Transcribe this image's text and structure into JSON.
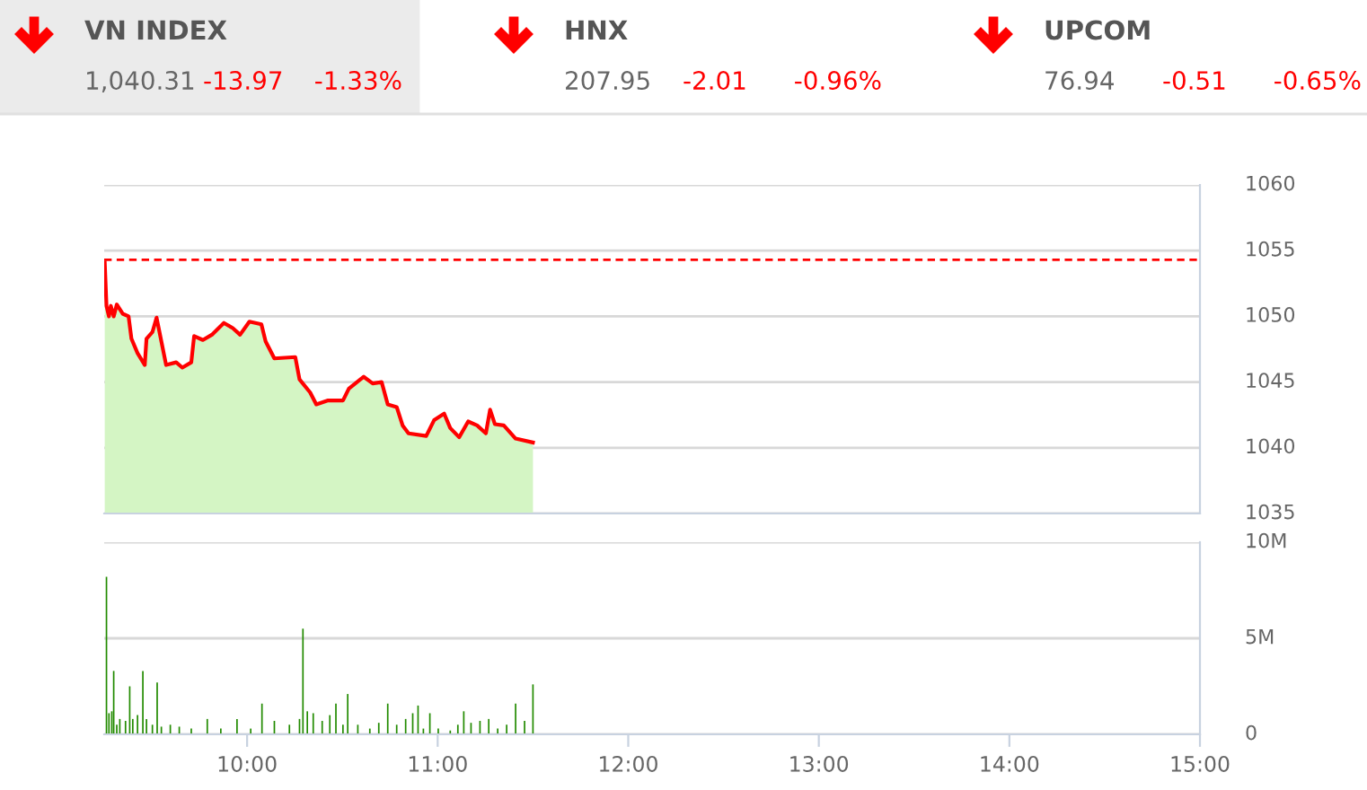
{
  "chart_data": [
    {
      "type": "other",
      "annotations": [
        "VN INDEX",
        "1,040.31",
        "-13.97",
        "-1.33%",
        "HNX",
        "207.95",
        "-2.01",
        "-0.96%",
        "UPCOM",
        "76.94",
        "-0.51",
        "-0.65%"
      ]
    },
    {
      "type": "area",
      "xlim": [
        9.25,
        15
      ],
      "ylim": [
        1035,
        1060
      ],
      "yticks": [
        1035,
        1040,
        1045,
        1050,
        1055,
        1060
      ],
      "tick_labels": "y",
      "grid": "y",
      "ref_lines": [
        {
          "axis": "y",
          "value": 1054.3,
          "color": "#ff0000",
          "line_style": "dashed"
        }
      ],
      "series": [
        {
          "type": "area",
          "color": "#d4f5c4",
          "x": [
            9.253,
            9.262,
            9.275,
            9.285,
            9.3,
            9.316,
            9.347,
            9.378,
            9.393,
            9.425,
            9.463,
            9.472,
            9.503,
            9.525,
            9.55,
            9.575,
            9.628,
            9.66,
            9.707,
            9.722,
            9.768,
            9.815,
            9.878,
            9.925,
            9.963,
            10.012,
            10.075,
            10.097,
            10.143,
            10.253,
            10.275,
            10.331,
            10.363,
            10.425,
            10.503,
            10.534,
            10.612,
            10.659,
            10.706,
            10.738,
            10.785,
            10.816,
            10.847,
            10.94,
            10.981,
            11.034,
            11.066,
            11.113,
            11.16,
            11.207,
            11.253,
            11.275,
            11.3,
            11.347,
            11.409,
            11.5
          ],
          "values": [
            1054.1,
            1050.8,
            1050.0,
            1050.8,
            1050.0,
            1050.9,
            1050.2,
            1050.0,
            1048.3,
            1047.2,
            1046.3,
            1048.3,
            1048.8,
            1049.9,
            1048.1,
            1046.3,
            1046.5,
            1046.1,
            1046.5,
            1048.5,
            1048.2,
            1048.6,
            1049.5,
            1049.1,
            1048.6,
            1049.6,
            1049.4,
            1048.1,
            1046.8,
            1046.9,
            1045.2,
            1044.2,
            1043.3,
            1043.6,
            1043.6,
            1044.5,
            1045.4,
            1044.9,
            1045.0,
            1043.3,
            1043.1,
            1041.7,
            1041.1,
            1040.9,
            1042.1,
            1042.6,
            1041.5,
            1040.8,
            1042.0,
            1041.7,
            1041.1,
            1042.9,
            1041.8,
            1041.7,
            1040.7,
            1040.4
          ]
        },
        {
          "type": "line",
          "color": "#ff0000",
          "x": [
            9.253,
            9.262,
            9.275,
            9.285,
            9.3,
            9.316,
            9.347,
            9.378,
            9.393,
            9.425,
            9.463,
            9.472,
            9.503,
            9.525,
            9.55,
            9.575,
            9.628,
            9.66,
            9.707,
            9.722,
            9.768,
            9.815,
            9.878,
            9.925,
            9.963,
            10.012,
            10.075,
            10.097,
            10.143,
            10.253,
            10.275,
            10.331,
            10.363,
            10.425,
            10.503,
            10.534,
            10.612,
            10.659,
            10.706,
            10.738,
            10.785,
            10.816,
            10.847,
            10.94,
            10.981,
            11.034,
            11.066,
            11.113,
            11.16,
            11.207,
            11.253,
            11.275,
            11.3,
            11.347,
            11.409,
            11.5
          ],
          "values": [
            1054.1,
            1050.8,
            1050.0,
            1050.8,
            1050.0,
            1050.9,
            1050.2,
            1050.0,
            1048.3,
            1047.2,
            1046.3,
            1048.3,
            1048.8,
            1049.9,
            1048.1,
            1046.3,
            1046.5,
            1046.1,
            1046.5,
            1048.5,
            1048.2,
            1048.6,
            1049.5,
            1049.1,
            1048.6,
            1049.6,
            1049.4,
            1048.1,
            1046.8,
            1046.9,
            1045.2,
            1044.2,
            1043.3,
            1043.6,
            1043.6,
            1044.5,
            1045.4,
            1044.9,
            1045.0,
            1043.3,
            1043.1,
            1041.7,
            1041.1,
            1040.9,
            1042.1,
            1042.6,
            1041.5,
            1040.8,
            1042.0,
            1041.7,
            1041.1,
            1042.9,
            1041.8,
            1041.7,
            1040.7,
            1040.4
          ]
        }
      ]
    },
    {
      "type": "bar",
      "xlim": [
        9.25,
        15
      ],
      "ylim": [
        0,
        10
      ],
      "yticks": [
        0,
        {
          "value": 5,
          "label": "5M"
        },
        {
          "value": 10,
          "label": "10M"
        }
      ],
      "xticks": [
        {
          "value": 10,
          "label": "10:00"
        },
        {
          "value": 11,
          "label": "11:00"
        },
        {
          "value": 12,
          "label": "12:00"
        },
        {
          "value": 13,
          "label": "13:00"
        },
        {
          "value": 14,
          "label": "14:00"
        },
        {
          "value": 15,
          "label": "15:00"
        }
      ],
      "grid": "y",
      "series": [
        {
          "color": "#228b00",
          "x": [
            9.262,
            9.275,
            9.29,
            9.3,
            9.316,
            9.332,
            9.362,
            9.384,
            9.4,
            9.425,
            9.453,
            9.472,
            9.503,
            9.528,
            9.55,
            9.597,
            9.644,
            9.707,
            9.791,
            9.862,
            9.947,
            10.019,
            10.078,
            10.143,
            10.222,
            10.275,
            10.293,
            10.316,
            10.347,
            10.394,
            10.434,
            10.466,
            10.503,
            10.528,
            10.581,
            10.644,
            10.691,
            10.738,
            10.785,
            10.832,
            10.869,
            10.897,
            10.925,
            10.959,
            11.003,
            11.066,
            11.106,
            11.137,
            11.175,
            11.222,
            11.268,
            11.315,
            11.362,
            11.409,
            11.456,
            11.5
          ],
          "values": [
            8.2,
            1.1,
            1.2,
            3.3,
            0.5,
            0.8,
            0.7,
            2.5,
            0.8,
            1.0,
            3.3,
            0.8,
            0.5,
            2.7,
            0.4,
            0.5,
            0.4,
            0.3,
            0.8,
            0.3,
            0.8,
            0.3,
            1.6,
            0.7,
            0.5,
            0.8,
            5.5,
            1.2,
            1.1,
            0.7,
            1.0,
            1.6,
            0.5,
            2.1,
            0.5,
            0.3,
            0.6,
            1.6,
            0.5,
            0.8,
            1.1,
            1.5,
            0.3,
            1.1,
            0.3,
            0.2,
            0.5,
            1.2,
            0.6,
            0.7,
            0.8,
            0.3,
            0.5,
            1.6,
            0.7,
            2.6
          ]
        }
      ]
    }
  ]
}
